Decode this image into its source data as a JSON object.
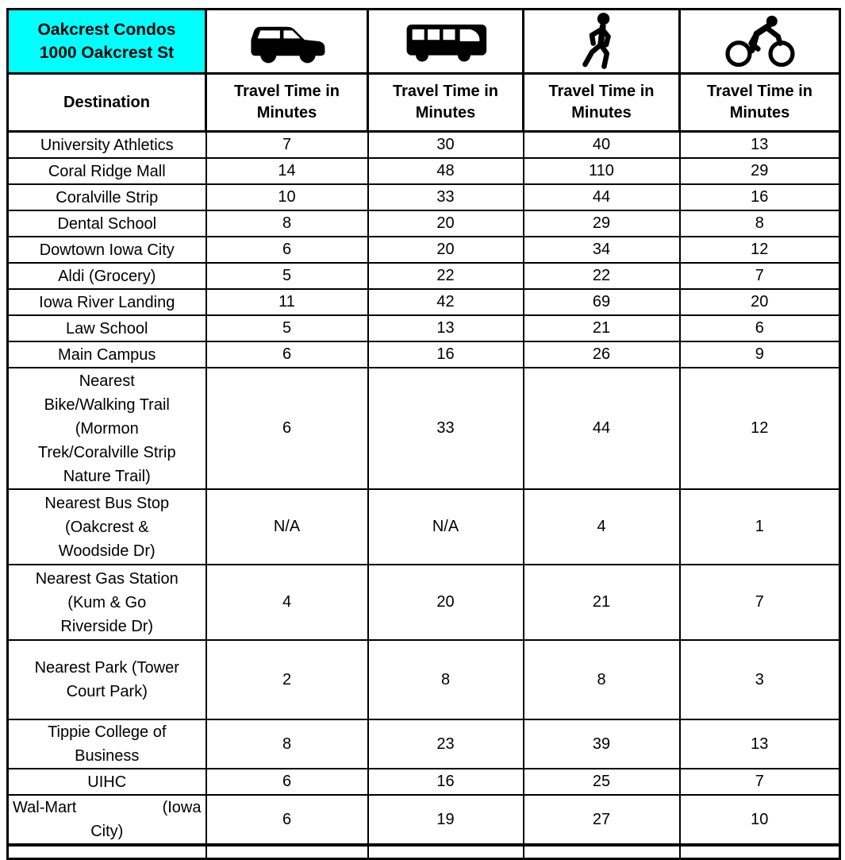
{
  "colors": {
    "property_header_bg": "#00FFFF",
    "border": "#000000",
    "text": "#000000",
    "background": "#FFFFFF"
  },
  "table": {
    "property": {
      "name": "Oakcrest Condos",
      "address": "1000 Oakcrest St"
    },
    "destination_header": "Destination",
    "mode_header": "Travel Time in Minutes",
    "modes": [
      {
        "id": "car",
        "icon": "car-icon"
      },
      {
        "id": "bus",
        "icon": "bus-icon"
      },
      {
        "id": "walk",
        "icon": "pedestrian-icon"
      },
      {
        "id": "bike",
        "icon": "bicycle-icon"
      }
    ],
    "rows": [
      {
        "destination": "University Athletics",
        "car": "7",
        "bus": "30",
        "walk": "40",
        "bike": "13"
      },
      {
        "destination": "Coral Ridge Mall",
        "car": "14",
        "bus": "48",
        "walk": "110",
        "bike": "29"
      },
      {
        "destination": "Coralville Strip",
        "car": "10",
        "bus": "33",
        "walk": "44",
        "bike": "16"
      },
      {
        "destination": "Dental School",
        "car": "8",
        "bus": "20",
        "walk": "29",
        "bike": "8"
      },
      {
        "destination": "Dowtown Iowa City",
        "car": "6",
        "bus": "20",
        "walk": "34",
        "bike": "12"
      },
      {
        "destination": "Aldi (Grocery)",
        "car": "5",
        "bus": "22",
        "walk": "22",
        "bike": "7"
      },
      {
        "destination": "Iowa River Landing",
        "car": "11",
        "bus": "42",
        "walk": "69",
        "bike": "20"
      },
      {
        "destination": "Law School",
        "car": "5",
        "bus": "13",
        "walk": "21",
        "bike": "6"
      },
      {
        "destination": "Main Campus",
        "car": "6",
        "bus": "16",
        "walk": "26",
        "bike": "9"
      },
      {
        "destination": "Nearest\nBike/Walking Trail\n(Mormon\nTrek/Coralville Strip\nNature Trail)",
        "car": "6",
        "bus": "33",
        "walk": "44",
        "bike": "12"
      },
      {
        "destination": "Nearest Bus Stop\n(Oakcrest &\nWoodside Dr)",
        "car": "N/A",
        "bus": "N/A",
        "walk": "4",
        "bike": "1"
      },
      {
        "destination": "Nearest Gas Station\n(Kum & Go\nRiverside Dr)",
        "car": "4",
        "bus": "20",
        "walk": "21",
        "bike": "7"
      },
      {
        "destination": "Nearest Park (Tower\nCourt Park)",
        "car": "2",
        "bus": "8",
        "walk": "8",
        "bike": "3"
      },
      {
        "destination": "Tippie College of\nBusiness",
        "car": "8",
        "bus": "23",
        "walk": "39",
        "bike": "13"
      },
      {
        "destination": "UIHC",
        "car": "6",
        "bus": "16",
        "walk": "25",
        "bike": "7"
      },
      {
        "destination": "Wal-Mart (Iowa City)",
        "dest_split": {
          "line1_left": "Wal-Mart",
          "line1_right": "(Iowa",
          "line2": "City)"
        },
        "car": "6",
        "bus": "19",
        "walk": "27",
        "bike": "10"
      }
    ]
  }
}
